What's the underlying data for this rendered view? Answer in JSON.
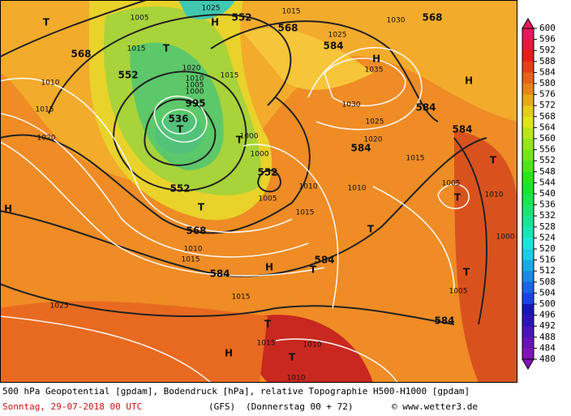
{
  "map": {
    "labels": [
      "552",
      "568",
      "568",
      "568",
      "552",
      "584",
      "536",
      "552",
      "552",
      "568",
      "584",
      "584",
      "584",
      "584",
      "584",
      "584",
      "1005",
      "1025",
      "1015",
      "1030",
      "1025",
      "1035",
      "1030",
      "1025",
      "1020",
      "1015",
      "1010",
      "1005",
      "1010",
      "1000",
      "1005",
      "1010",
      "1015",
      "1020",
      "1015",
      "1020",
      "1010",
      "1005",
      "1000",
      "995",
      "1000",
      "1000",
      "1005",
      "1010",
      "1015",
      "1010",
      "1015",
      "1015",
      "1025",
      "1015",
      "1010",
      "1010",
      "1015",
      "T",
      "H",
      "T",
      "T",
      "T",
      "T",
      "T",
      "T",
      "H",
      "T",
      "H",
      "T",
      "H",
      "H",
      "T",
      "T",
      "T",
      "H"
    ]
  },
  "colorbar": {
    "ticks": [
      600,
      596,
      592,
      588,
      584,
      580,
      576,
      572,
      568,
      564,
      560,
      556,
      552,
      548,
      544,
      540,
      536,
      532,
      528,
      524,
      520,
      516,
      512,
      508,
      504,
      500,
      496,
      492,
      488,
      484,
      480
    ]
  },
  "footer": {
    "description": "500 hPa Geopotential [gpdam], Bodendruck [hPa], relative Topographie H500-H1000 [gpdam]",
    "date": "Sonntag, 29-07-2018  00 UTC",
    "model": "(GFS)",
    "forecast": "(Donnerstag 00 + 72)",
    "credit": "© www.wetter3.de"
  }
}
